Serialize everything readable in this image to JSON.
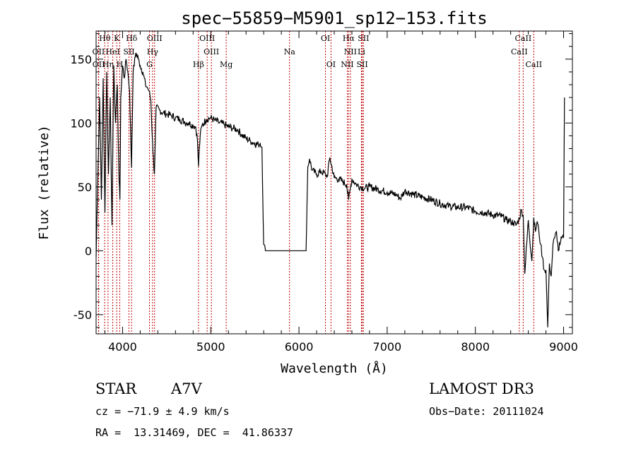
{
  "chart_data": {
    "type": "line",
    "title": "spec−55859−M5901_sp12−153.fits",
    "xlabel": "Wavelength (Å)",
    "ylabel": "Flux (relative)",
    "xlim": [
      3700,
      9100
    ],
    "ylim": [
      -65,
      172
    ],
    "x_ticks": [
      4000,
      5000,
      6000,
      7000,
      8000,
      9000
    ],
    "y_ticks": [
      -50,
      0,
      50,
      100,
      150
    ],
    "grid": false,
    "series": [
      {
        "name": "flux",
        "x": [
          3700,
          3720,
          3740,
          3760,
          3780,
          3800,
          3820,
          3840,
          3860,
          3880,
          3900,
          3920,
          3940,
          3960,
          3970,
          3980,
          4000,
          4020,
          4040,
          4060,
          4080,
          4101,
          4120,
          4150,
          4180,
          4200,
          4230,
          4260,
          4280,
          4300,
          4320,
          4340,
          4361,
          4380,
          4420,
          4460,
          4500,
          4550,
          4600,
          4650,
          4700,
          4750,
          4800,
          4830,
          4850,
          4861,
          4870,
          4880,
          4900,
          4950,
          5000,
          5050,
          5100,
          5150,
          5200,
          5250,
          5300,
          5350,
          5400,
          5450,
          5500,
          5540,
          5560,
          5580,
          5600,
          5620,
          5640,
          5700,
          5800,
          5900,
          6000,
          6050,
          6080,
          6100,
          6120,
          6150,
          6200,
          6250,
          6300,
          6320,
          6350,
          6400,
          6450,
          6500,
          6540,
          6563,
          6580,
          6600,
          6650,
          6700,
          6750,
          6800,
          6900,
          7000,
          7100,
          7150,
          7200,
          7300,
          7400,
          7500,
          7600,
          7700,
          7800,
          7900,
          8000,
          8100,
          8200,
          8300,
          8350,
          8400,
          8430,
          8460,
          8498,
          8520,
          8542,
          8560,
          8600,
          8640,
          8662,
          8680,
          8700,
          8720,
          8740,
          8760,
          8780,
          8800,
          8820,
          8840,
          8860,
          8880,
          8900,
          8920,
          8940,
          8960,
          8980,
          9000,
          9010
        ],
        "y": [
          -5,
          60,
          120,
          40,
          135,
          30,
          140,
          60,
          120,
          20,
          145,
          100,
          130,
          55,
          40,
          120,
          145,
          135,
          150,
          140,
          125,
          65,
          140,
          155,
          150,
          145,
          140,
          130,
          128,
          125,
          118,
          85,
          60,
          112,
          110,
          108,
          107,
          106,
          104,
          103,
          101,
          100,
          98,
          97,
          86,
          66,
          80,
          90,
          98,
          103,
          104,
          102,
          100,
          99,
          97,
          96,
          95,
          91,
          88,
          86,
          84,
          83,
          84,
          81,
          5,
          0,
          0,
          0,
          0,
          0,
          0,
          0,
          0,
          66,
          72,
          63,
          60,
          62,
          60,
          58,
          73,
          57,
          56,
          54,
          52,
          40,
          48,
          56,
          52,
          50,
          49,
          50,
          48,
          46,
          44,
          41,
          47,
          44,
          42,
          40,
          37,
          35,
          34,
          34,
          31,
          30,
          28,
          27,
          24,
          23,
          22,
          20,
          25,
          32,
          28,
          -18,
          24,
          -8,
          26,
          15,
          23,
          15,
          5,
          -5,
          -15,
          -15,
          -60,
          -10,
          -20,
          5,
          10,
          15,
          0,
          5,
          10,
          10,
          120
        ]
      }
    ],
    "lines": {
      "upper": [
        {
          "label": "Hθ",
          "x": 3798
        },
        {
          "label": "K",
          "x": 3934
        },
        {
          "label": "Hδ",
          "x": 4102
        },
        {
          "label": "OIII",
          "x": 4363
        },
        {
          "label": "OIII",
          "x": 4959
        },
        {
          "label": "OI",
          "x": 6300
        },
        {
          "label": "Hα",
          "x": 6563
        },
        {
          "label": "SII",
          "x": 6731
        },
        {
          "label": "CaII",
          "x": 8542
        }
      ],
      "middle": [
        {
          "label": "OII",
          "x": 3727
        },
        {
          "label": "HeI",
          "x": 3889
        },
        {
          "label": "SII",
          "x": 4072
        },
        {
          "label": "Hγ",
          "x": 4340
        },
        {
          "label": "OIII",
          "x": 5007
        },
        {
          "label": "Na",
          "x": 5893
        },
        {
          "label": "NII",
          "x": 6583
        },
        {
          "label": "Li",
          "x": 6708
        },
        {
          "label": "CaII",
          "x": 8498
        }
      ],
      "lower": [
        {
          "label": "OII",
          "x": 3729
        },
        {
          "label": "Hη",
          "x": 3835
        },
        {
          "label": "H",
          "x": 3968
        },
        {
          "label": "G",
          "x": 4305
        },
        {
          "label": "Hβ",
          "x": 4861
        },
        {
          "label": "Mg",
          "x": 5175
        },
        {
          "label": "OI",
          "x": 6363
        },
        {
          "label": "NII",
          "x": 6548
        },
        {
          "label": "SII",
          "x": 6717
        },
        {
          "label": "CaII",
          "x": 8662
        }
      ]
    }
  },
  "info": {
    "object_class": "STAR",
    "subclass": "A7V",
    "survey": "LAMOST DR3",
    "redshift": "cz = −71.9 ± 4.9 km/s",
    "obs_date": "Obs−Date: 20111024",
    "coords": "RA =  13.31469, DEC =  41.86337"
  }
}
